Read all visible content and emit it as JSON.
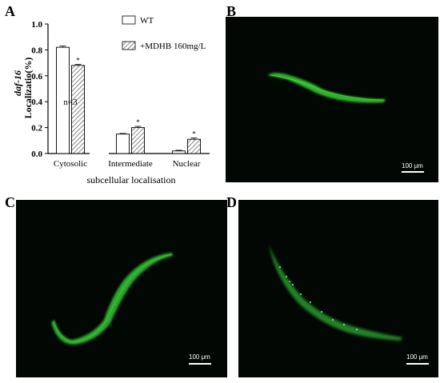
{
  "panels": {
    "a": "A",
    "b": "B",
    "c": "C",
    "d": "D"
  },
  "chart_data": {
    "type": "bar",
    "title": "",
    "xlabel": "subcellular localisation",
    "ylabel_gene": "daf-16",
    "ylabel": "Localizatio(%)",
    "categories": [
      "Cytosolic",
      "Intermediate",
      "Nuclear"
    ],
    "ylim": [
      0,
      1.0
    ],
    "yticks": [
      "0.0",
      "0.2",
      "0.4",
      "0.6",
      "0.8",
      "1.0"
    ],
    "series": [
      {
        "name": "WT",
        "values": [
          0.82,
          0.15,
          0.02
        ],
        "errors": [
          0.01,
          0.005,
          0.005
        ],
        "fill": "white"
      },
      {
        "name": "+MDHB 160mg/L",
        "values": [
          0.68,
          0.2,
          0.11
        ],
        "errors": [
          0.008,
          0.01,
          0.01
        ],
        "fill": "hatched"
      }
    ],
    "significance": [
      "*",
      "*",
      "*"
    ],
    "annotation": "n=3",
    "legend_position": "top-right",
    "grid": false
  },
  "images": [
    {
      "panel": "B",
      "scale_label": "100 μm"
    },
    {
      "panel": "C",
      "scale_label": "100 μm"
    },
    {
      "panel": "D",
      "scale_label": "100 μm"
    }
  ],
  "colors": {
    "fluorescence": "#3fd23a",
    "background": "#020704",
    "bar_edge": "#000000"
  }
}
